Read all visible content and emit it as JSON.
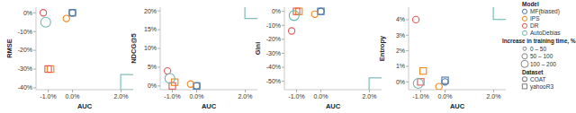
{
  "chart_data": [
    {
      "type": "scatter",
      "x_label": "AUC",
      "y_label": "RMSE",
      "xlim": [
        -1.5,
        2.5
      ],
      "ylim": [
        -41,
        3
      ],
      "xticks": [
        {
          "value": -1,
          "label": "-1.0%"
        },
        {
          "value": 0,
          "label": "0.0%"
        },
        {
          "value": 2,
          "label": "2.0%"
        }
      ],
      "yticks": [
        {
          "value": 0,
          "label": "0%"
        },
        {
          "value": -10,
          "label": "-10%"
        },
        {
          "value": -20,
          "label": "-20%"
        },
        {
          "value": -30,
          "label": "-30%"
        },
        {
          "value": -40,
          "label": "-40%"
        }
      ],
      "series": [
        {
          "name": "MF(biased)",
          "color": "#4c78a8",
          "x": [
            0,
            0
          ],
          "values": [
            0,
            0
          ],
          "sizes": [
            0,
            0
          ]
        },
        {
          "name": "IPS",
          "color": "#f58518",
          "x": [
            -0.25,
            -0.9
          ],
          "values": [
            -3,
            -30
          ],
          "sizes": [
            10,
            20
          ]
        },
        {
          "name": "DR",
          "color": "#e45756",
          "x": [
            -1.2,
            -1.0
          ],
          "values": [
            0,
            -30
          ],
          "sizes": [
            30,
            40
          ]
        },
        {
          "name": "AutoDebias",
          "color": "#72b7b2",
          "x": [
            -1.1,
            2.3
          ],
          "values": [
            -5,
            -37
          ],
          "sizes": [
            70,
            150
          ]
        }
      ]
    },
    {
      "type": "scatter",
      "x_label": "AUC",
      "y_label": "NDCG@5",
      "xlim": [
        -1.5,
        2.5
      ],
      "ylim": [
        -1,
        21
      ],
      "xticks": [
        {
          "value": -1,
          "label": "-1.0%"
        },
        {
          "value": 0,
          "label": "0.0%"
        },
        {
          "value": 2,
          "label": "2.0%"
        }
      ],
      "yticks": [
        {
          "value": 20,
          "label": "20%"
        },
        {
          "value": 15,
          "label": "15%"
        },
        {
          "value": 10,
          "label": "10%"
        },
        {
          "value": 5,
          "label": "5%"
        },
        {
          "value": 0,
          "label": "0%"
        }
      ],
      "series": [
        {
          "name": "MF(biased)",
          "color": "#4c78a8",
          "x": [
            0,
            0
          ],
          "values": [
            0,
            0
          ],
          "sizes": [
            0,
            0
          ]
        },
        {
          "name": "IPS",
          "color": "#f58518",
          "x": [
            -0.25,
            -0.9
          ],
          "values": [
            0.5,
            1
          ],
          "sizes": [
            10,
            20
          ]
        },
        {
          "name": "DR",
          "color": "#e45756",
          "x": [
            -1.2,
            -1.0
          ],
          "values": [
            4,
            0
          ],
          "sizes": [
            30,
            40
          ]
        },
        {
          "name": "AutoDebias",
          "color": "#72b7b2",
          "x": [
            -1.1,
            2.3
          ],
          "values": [
            2,
            20
          ],
          "sizes": [
            70,
            150
          ]
        }
      ]
    },
    {
      "type": "scatter",
      "x_label": "AUC",
      "y_label": "Gini",
      "xlim": [
        -1.5,
        2.5
      ],
      "ylim": [
        -56,
        3
      ],
      "xticks": [
        {
          "value": -1,
          "label": "-1.0%"
        },
        {
          "value": 0,
          "label": "0.0%"
        },
        {
          "value": 2,
          "label": "2.0%"
        }
      ],
      "yticks": [
        {
          "value": 0,
          "label": "0%"
        },
        {
          "value": -10,
          "label": "-10%"
        },
        {
          "value": -20,
          "label": "-20%"
        },
        {
          "value": -30,
          "label": "-30%"
        },
        {
          "value": -40,
          "label": "-40%"
        },
        {
          "value": -50,
          "label": "-50%"
        }
      ],
      "series": [
        {
          "name": "MF(biased)",
          "color": "#4c78a8",
          "x": [
            0,
            0
          ],
          "values": [
            0,
            0
          ],
          "sizes": [
            0,
            0
          ]
        },
        {
          "name": "IPS",
          "color": "#f58518",
          "x": [
            -0.25,
            -0.9
          ],
          "values": [
            -2,
            0
          ],
          "sizes": [
            10,
            20
          ]
        },
        {
          "name": "DR",
          "color": "#e45756",
          "x": [
            -1.2,
            -1.0
          ],
          "values": [
            -14,
            0
          ],
          "sizes": [
            30,
            40
          ]
        },
        {
          "name": "AutoDebias",
          "color": "#72b7b2",
          "x": [
            -1.1,
            2.3
          ],
          "values": [
            -3,
            -53
          ],
          "sizes": [
            70,
            150
          ]
        }
      ]
    },
    {
      "type": "scatter",
      "x_label": "AUC",
      "y_label": "Entropy",
      "xlim": [
        -1.5,
        2.5
      ],
      "ylim": [
        -0.5,
        4.8
      ],
      "xticks": [
        {
          "value": -1,
          "label": "-1.0%"
        },
        {
          "value": 0,
          "label": "0.0%"
        },
        {
          "value": 2,
          "label": "2.0%"
        }
      ],
      "yticks": [
        {
          "value": 4,
          "label": "4%"
        },
        {
          "value": 3,
          "label": "3%"
        },
        {
          "value": 2,
          "label": "2%"
        },
        {
          "value": 1,
          "label": "1%"
        },
        {
          "value": 0,
          "label": "0%"
        }
      ],
      "series": [
        {
          "name": "MF(biased)",
          "color": "#4c78a8",
          "x": [
            0,
            0
          ],
          "values": [
            0,
            0.1
          ],
          "sizes": [
            0,
            0
          ]
        },
        {
          "name": "IPS",
          "color": "#f58518",
          "x": [
            -0.25,
            -0.9
          ],
          "values": [
            -0.3,
            0.7
          ],
          "sizes": [
            10,
            20
          ]
        },
        {
          "name": "DR",
          "color": "#e45756",
          "x": [
            -1.2,
            -1.0
          ],
          "values": [
            4,
            0
          ],
          "sizes": [
            30,
            40
          ]
        },
        {
          "name": "AutoDebias",
          "color": "#72b7b2",
          "x": [
            -1.1,
            2.3
          ],
          "values": [
            -0.1,
            4.5
          ],
          "sizes": [
            70,
            150
          ]
        }
      ]
    }
  ],
  "legend": {
    "model_title": "Model",
    "size_title": "Increase in training time, %",
    "size_bins": [
      {
        "label": "0 – 50",
        "min": 0,
        "max": 50
      },
      {
        "label": "50 – 100",
        "min": 50,
        "max": 100
      },
      {
        "label": "100 – 200",
        "min": 100,
        "max": 200
      }
    ],
    "dataset_title": "Dataset",
    "datasets": [
      {
        "name": "COAT",
        "marker": "circle"
      },
      {
        "name": "yahooR3",
        "marker": "square"
      }
    ]
  }
}
